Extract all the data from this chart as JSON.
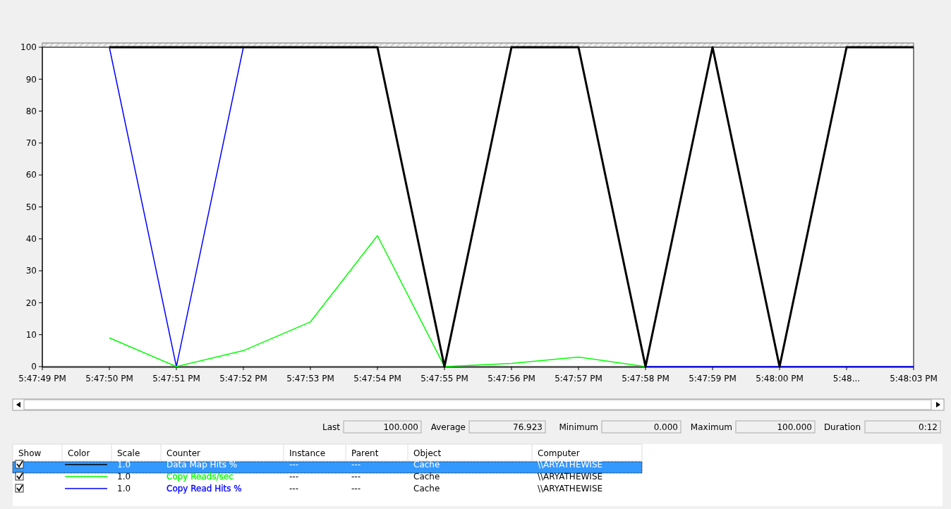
{
  "chart_data": {
    "type": "line",
    "categories": [
      "5:47:49 PM",
      "5:47:50 PM",
      "5:47:51 PM",
      "5:47:52 PM",
      "5:47:53 PM",
      "5:47:54 PM",
      "5:47:55 PM",
      "5:47:56 PM",
      "5:47:57 PM",
      "5:47:58 PM",
      "5:47:59 PM",
      "5:48:00 PM",
      "5:48...",
      "5:48:03 PM"
    ],
    "ylim": [
      0,
      100
    ],
    "yticks": [
      0,
      10,
      20,
      30,
      40,
      50,
      60,
      70,
      80,
      90,
      100
    ],
    "grid": false,
    "legend": "bottom",
    "marker": "none",
    "line_style": "solid",
    "series": [
      {
        "name": "Data Map Hits %",
        "color": "#000000",
        "values": [
          null,
          100,
          100,
          100,
          100,
          100,
          0,
          100,
          100,
          0,
          100,
          0,
          100,
          100
        ]
      },
      {
        "name": "Copy Reads/sec",
        "color": "#00ff00",
        "values": [
          null,
          9,
          0,
          5,
          14,
          41,
          0,
          1,
          3,
          0,
          null,
          null,
          null,
          null
        ]
      },
      {
        "name": "Copy Read Hits %",
        "color": "#0000ff",
        "values": [
          null,
          100,
          0,
          100,
          null,
          null,
          null,
          null,
          null,
          0,
          0,
          0,
          0,
          0
        ]
      }
    ],
    "annotations": [
      "Last",
      "100.000",
      "Average",
      "76.923",
      "Minimum",
      "0.000",
      "Maximum",
      "100.000",
      "Duration",
      "0:12",
      "Show",
      "Color",
      "Scale",
      "Counter",
      "Instance",
      "Parent",
      "Object",
      "Computer",
      "1.0",
      "---",
      "---",
      "Cache",
      "\\\\ARYATHEWISE",
      "1.0",
      "---",
      "---",
      "Cache",
      "\\\\ARYATHEWISE",
      "1.0",
      "---",
      "---",
      "Cache",
      "\\\\ARYATHEWISE"
    ]
  }
}
